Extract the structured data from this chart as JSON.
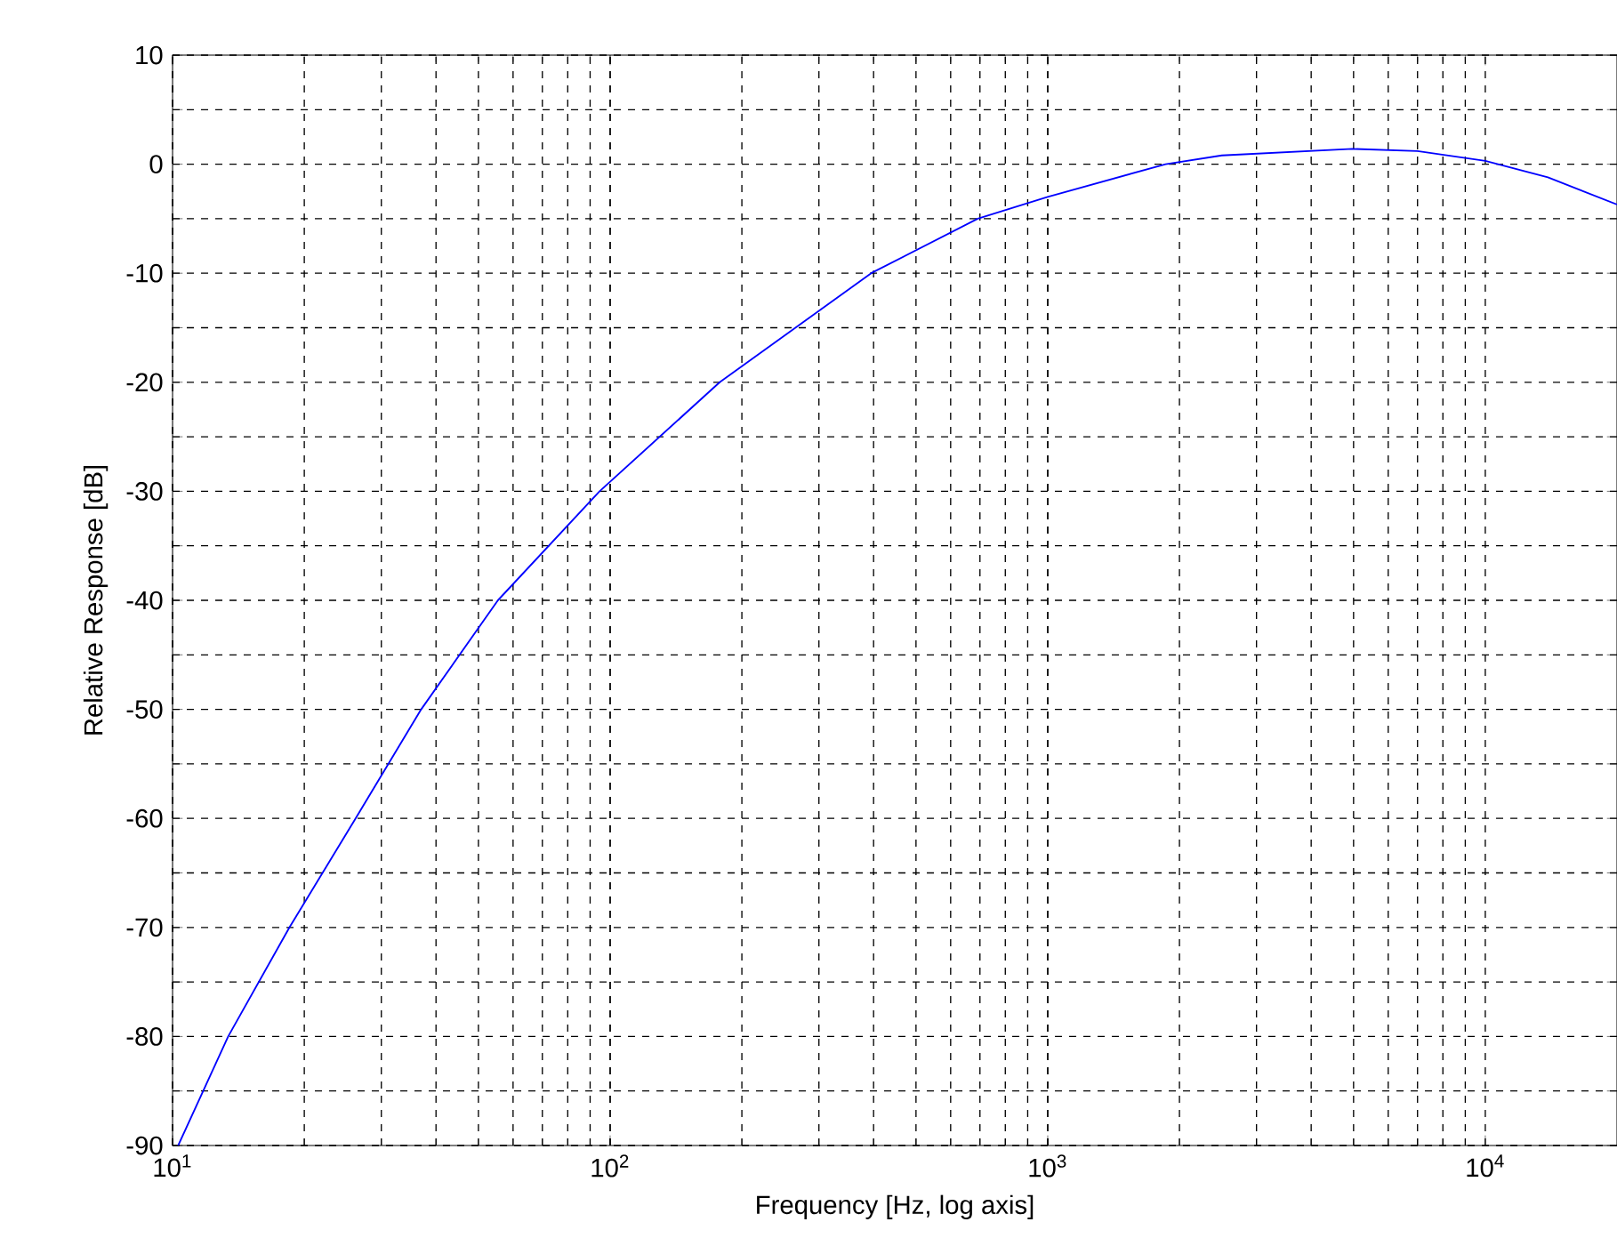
{
  "chart_data": {
    "type": "line",
    "xlabel": "Frequency [Hz, log axis]",
    "ylabel": "Relative Response [dB]",
    "log": "x",
    "grid": true,
    "xlim": [
      10,
      20000
    ],
    "ylim": [
      -90,
      10
    ],
    "xticks": [
      {
        "value": 10,
        "label": "10$^{1}$"
      },
      {
        "value": 100,
        "label": "10$^{2}$"
      },
      {
        "value": 1000,
        "label": "10$^{3}$"
      },
      {
        "value": 10000,
        "label": "10$^{4}$"
      }
    ],
    "yticks": [
      -90,
      {
        "value": -85,
        "label": null
      },
      -80,
      {
        "value": -75,
        "label": null
      },
      -70,
      {
        "value": -65,
        "label": null
      },
      -60,
      {
        "value": -55,
        "label": null
      },
      -50,
      {
        "value": -45,
        "label": null
      },
      -40,
      {
        "value": -35,
        "label": null
      },
      -30,
      {
        "value": -25,
        "label": null
      },
      -20,
      {
        "value": -15,
        "label": null
      },
      -10,
      {
        "value": -5,
        "label": null
      },
      0,
      {
        "value": 5,
        "label": null
      },
      10
    ],
    "series": [
      {
        "color": "#0000ff",
        "x": [
          10.3,
          13.4,
          18.5,
          26.2,
          37.0,
          55.4,
          94.6,
          178,
          395,
          692,
          1000,
          1860,
          2500,
          4970,
          7000,
          10000,
          13900,
          20000
        ],
        "values": [
          -90,
          -80,
          -70,
          -60,
          -50,
          -40,
          -30,
          -20,
          -10,
          -5,
          -3,
          0,
          0.8,
          1.4,
          1.2,
          0.3,
          -1.2,
          -3.7
        ]
      }
    ]
  }
}
